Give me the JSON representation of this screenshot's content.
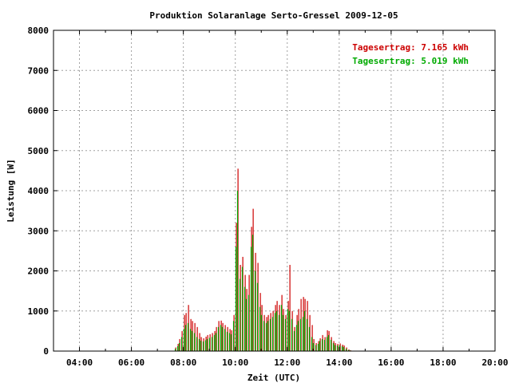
{
  "chart_data": {
    "type": "bar",
    "title": "Produktion Solaranlage Serto-Gressel 2009-12-05",
    "xlabel": "Zeit (UTC)",
    "ylabel": "Leistung [W]",
    "x_range_hours": [
      3,
      20
    ],
    "ylim": [
      0,
      8000
    ],
    "x_ticks": [
      {
        "hour": 4,
        "label": "04:00"
      },
      {
        "hour": 6,
        "label": "06:00"
      },
      {
        "hour": 8,
        "label": "08:00"
      },
      {
        "hour": 10,
        "label": "10:00"
      },
      {
        "hour": 12,
        "label": "12:00"
      },
      {
        "hour": 14,
        "label": "14:00"
      },
      {
        "hour": 16,
        "label": "16:00"
      },
      {
        "hour": 18,
        "label": "18:00"
      },
      {
        "hour": 20,
        "label": "20:00"
      }
    ],
    "y_ticks": [
      0,
      1000,
      2000,
      3000,
      4000,
      5000,
      6000,
      7000,
      8000
    ],
    "grid": true,
    "legend_position": "top-right",
    "interval_minutes": 5,
    "start_time": "07:40",
    "series": [
      {
        "name": "Tagesertrag: 7.165 kWh",
        "color": "#cc0000",
        "values": [
          90,
          180,
          300,
          500,
          900,
          950,
          1150,
          800,
          750,
          700,
          600,
          450,
          350,
          320,
          360,
          400,
          420,
          450,
          500,
          600,
          750,
          760,
          700,
          650,
          600,
          550,
          520,
          900,
          3200,
          4550,
          2150,
          2350,
          1900,
          1550,
          1900,
          3100,
          3550,
          2450,
          2200,
          1450,
          1150,
          900,
          850,
          900,
          950,
          1000,
          1150,
          1250,
          1150,
          1400,
          1050,
          900,
          1250,
          2150,
          1000,
          600,
          900,
          1050,
          1300,
          1350,
          1300,
          1250,
          900,
          650,
          300,
          200,
          250,
          320,
          400,
          350,
          520,
          500,
          350,
          250,
          200,
          180,
          190,
          160,
          140,
          90,
          40,
          20
        ]
      },
      {
        "name": "Tagesertrag: 5.019 kWh",
        "color": "#00aa00",
        "values": [
          60,
          120,
          200,
          350,
          550,
          650,
          700,
          550,
          500,
          450,
          350,
          300,
          260,
          240,
          270,
          300,
          330,
          350,
          400,
          450,
          600,
          650,
          600,
          550,
          480,
          450,
          420,
          750,
          2600,
          4000,
          1800,
          2100,
          1600,
          1300,
          1400,
          2600,
          2900,
          2000,
          1700,
          1100,
          900,
          750,
          700,
          750,
          800,
          850,
          950,
          1000,
          900,
          1150,
          900,
          800,
          1050,
          1000,
          800,
          500,
          650,
          750,
          800,
          850,
          1000,
          800,
          600,
          350,
          200,
          150,
          180,
          250,
          300,
          280,
          350,
          400,
          280,
          200,
          150,
          140,
          150,
          120,
          100,
          60,
          30,
          15
        ]
      }
    ]
  }
}
